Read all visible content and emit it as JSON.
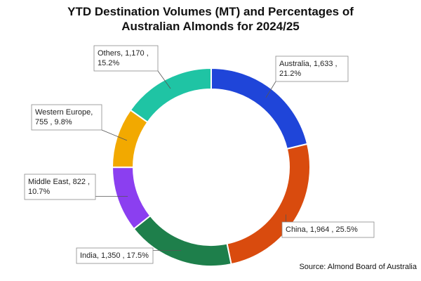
{
  "chart_data": {
    "type": "pie",
    "variant": "donut",
    "title_lines": [
      "YTD Destination Volumes (MT) and Percentages of",
      "Australian Almonds for 2024/25"
    ],
    "slices": [
      {
        "name": "Australia",
        "value": 1633,
        "value_label": "1,633",
        "percent_label": "21.2%",
        "label_lines": [
          "Australia, 1,633 ,",
          "21.2%"
        ],
        "color": "#1f45d9"
      },
      {
        "name": "China",
        "value": 1964,
        "value_label": "1,964",
        "percent_label": "25.5%",
        "label_lines": [
          "China, 1,964 , 25.5%"
        ],
        "color": "#d94b0e"
      },
      {
        "name": "India",
        "value": 1350,
        "value_label": "1,350",
        "percent_label": "17.5%",
        "label_lines": [
          "India, 1,350 , 17.5%"
        ],
        "color": "#1e7f4b"
      },
      {
        "name": "Middle East",
        "value": 822,
        "value_label": "822",
        "percent_label": "10.7%",
        "label_lines": [
          "Middle East, 822 ,",
          "10.7%"
        ],
        "color": "#8b3ff0"
      },
      {
        "name": "Western Europe",
        "value": 755,
        "value_label": "755",
        "percent_label": "9.8%",
        "label_lines": [
          "Western Europe,",
          "755 , 9.8%"
        ],
        "color": "#f2a900"
      },
      {
        "name": "Others",
        "value": 1170,
        "value_label": "1,170",
        "percent_label": "15.2%",
        "label_lines": [
          "Others, 1,170 ,",
          "15.2%"
        ],
        "color": "#1fc4a4"
      }
    ],
    "start": "12 o'clock",
    "direction": "clockwise",
    "legend": "none"
  },
  "source": "Source: Almond Board of Australia"
}
